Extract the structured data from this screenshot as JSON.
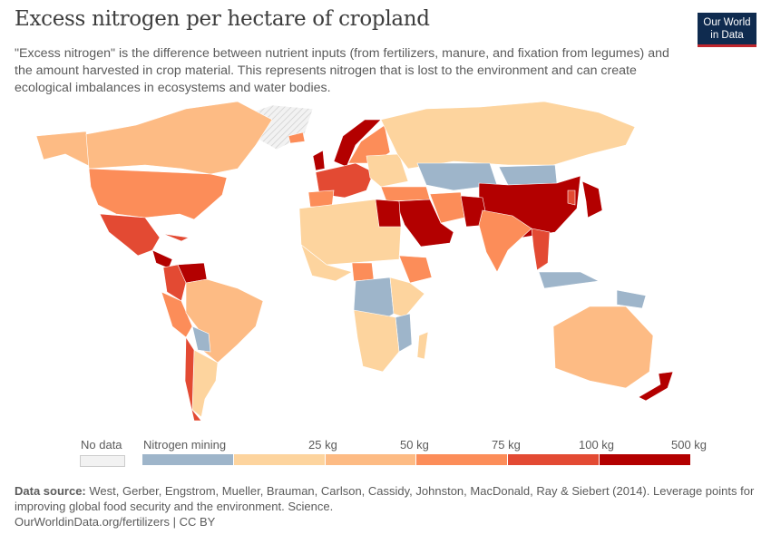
{
  "title": "Excess nitrogen per hectare of cropland",
  "subtitle": "\"Excess nitrogen\" is the difference between nutrient inputs (from fertilizers, manure, and fixation from legumes) and the amount harvested in crop material. This represents nitrogen that is lost to the environment and can create ecological imbalances in ecosystems and water bodies.",
  "logo": {
    "line1": "Our World",
    "line2": "in Data"
  },
  "legend": {
    "no_data": "No data",
    "labels": [
      "Nitrogen mining",
      "25 kg",
      "50 kg",
      "75 kg",
      "100 kg",
      "500 kg"
    ],
    "colors": {
      "no_data": "#e8e8e8",
      "mining": "#9eb5ca",
      "0-25": "#fdd49e",
      "25-50": "#fdbb84",
      "50-75": "#fc8d59",
      "75-100": "#e34a33",
      "100-500": "#b30000"
    }
  },
  "source": {
    "label": "Data source:",
    "text": " West, Gerber, Engstrom, Mueller, Brauman, Carlson, Cassidy, Johnston, MacDonald, Ray & Siebert (2014). Leverage points for improving global food security and the environment. Science."
  },
  "url": "OurWorldinData.org/fertilizers | CC BY"
}
